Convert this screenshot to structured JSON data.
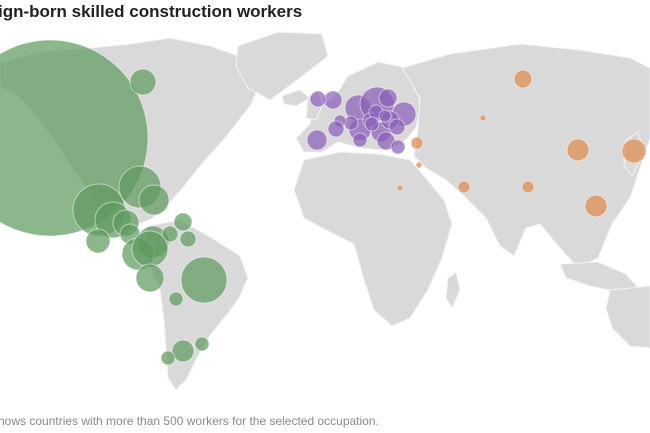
{
  "title": "ign-born skilled construction workers",
  "footnote": "hows countries with more than 500 workers for the selected occupation.",
  "colors": {
    "land": "#d9d9d9",
    "border": "#f4f4f4",
    "americas": "#5f9a5f",
    "europe": "#8a5fb8",
    "asia": "#df8a4f"
  },
  "regions": [
    {
      "name": "americas",
      "bubbles": [
        {
          "size": 98
        },
        {
          "size": 13
        },
        {
          "size": 26
        },
        {
          "size": 21
        },
        {
          "size": 18
        },
        {
          "size": 15
        },
        {
          "size": 13
        },
        {
          "size": 12
        },
        {
          "size": 16
        },
        {
          "size": 10
        },
        {
          "size": 9
        },
        {
          "size": 8
        },
        {
          "size": 8
        },
        {
          "size": 16
        },
        {
          "size": 18
        },
        {
          "size": 14
        },
        {
          "size": 23
        },
        {
          "size": 7
        },
        {
          "size": 11
        },
        {
          "size": 7
        },
        {
          "size": 7
        }
      ]
    },
    {
      "name": "europe",
      "bubbles": [
        {
          "size": 9
        },
        {
          "size": 8
        },
        {
          "size": 13
        },
        {
          "size": 17
        },
        {
          "size": 9
        },
        {
          "size": 12
        },
        {
          "size": 11
        },
        {
          "size": 10
        },
        {
          "size": 9
        },
        {
          "size": 8
        },
        {
          "size": 7
        },
        {
          "size": 7
        },
        {
          "size": 10
        },
        {
          "size": 9
        },
        {
          "size": 7
        },
        {
          "size": 7
        },
        {
          "size": 6
        },
        {
          "size": 8
        },
        {
          "size": 7
        },
        {
          "size": 6
        },
        {
          "size": 7
        }
      ]
    },
    {
      "name": "asia",
      "bubbles": [
        {
          "size": 6
        },
        {
          "size": 3
        },
        {
          "size": 3
        },
        {
          "size": 3
        },
        {
          "size": 6
        },
        {
          "size": 6
        },
        {
          "size": 9
        },
        {
          "size": 11
        },
        {
          "size": 12
        },
        {
          "size": 11
        }
      ]
    }
  ]
}
